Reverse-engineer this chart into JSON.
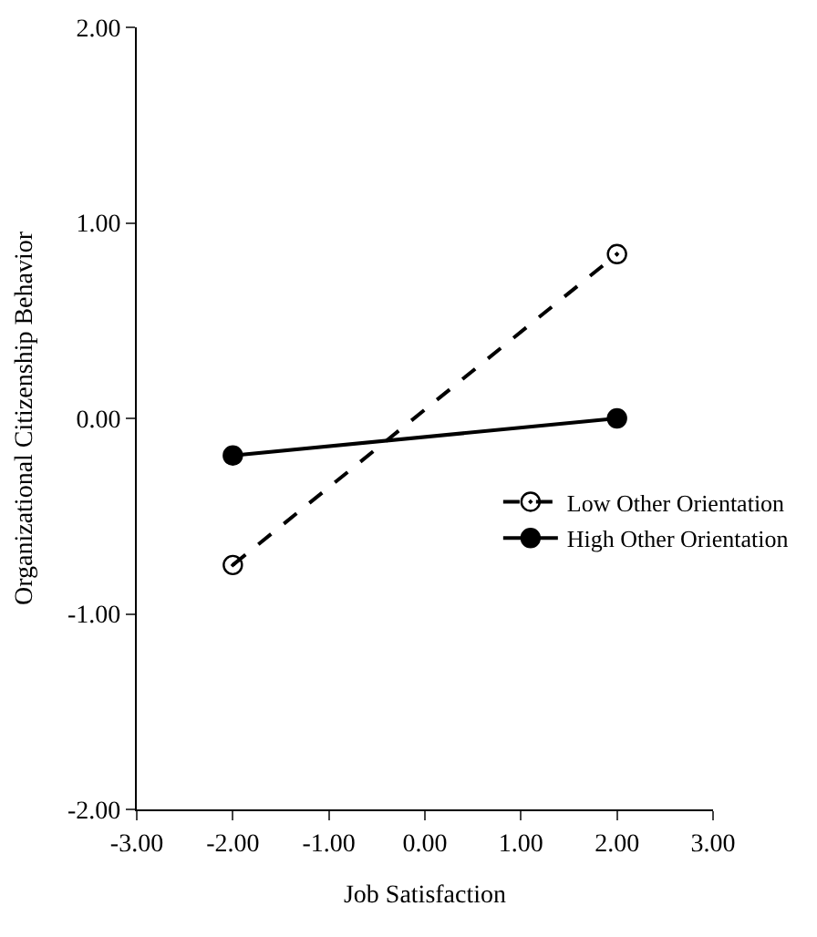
{
  "chart_data": {
    "type": "line",
    "xlabel": "Job Satisfaction",
    "ylabel": "Organizational Citizenship Behavior",
    "x": [
      -2,
      2
    ],
    "series": [
      {
        "name": "Low Other Orientation",
        "color": "#000000",
        "values": [
          -0.75,
          0.84
        ],
        "line_style": "dashed",
        "marker": "circle-open"
      },
      {
        "name": "High Other Orientation",
        "color": "#000000",
        "values": [
          -0.19,
          0.0
        ],
        "line_style": "solid",
        "marker": "circle"
      }
    ],
    "xlim": [
      -3,
      3
    ],
    "xticks": [
      {
        "value": -3,
        "label": "-3.00"
      },
      {
        "value": -2,
        "label": "-2.00"
      },
      {
        "value": -1,
        "label": "-1.00"
      },
      {
        "value": 0,
        "label": "0.00"
      },
      {
        "value": 1,
        "label": "1.00"
      },
      {
        "value": 2,
        "label": "2.00"
      },
      {
        "value": 3,
        "label": "3.00"
      }
    ],
    "ylim": [
      -2,
      2
    ],
    "yticks": [
      {
        "value": -2,
        "label": "-2.00"
      },
      {
        "value": -1,
        "label": "-1.00"
      },
      {
        "value": 0,
        "label": "0.00"
      },
      {
        "value": 1,
        "label": "1.00"
      },
      {
        "value": 2,
        "label": "2.00"
      }
    ],
    "legend": "right"
  }
}
